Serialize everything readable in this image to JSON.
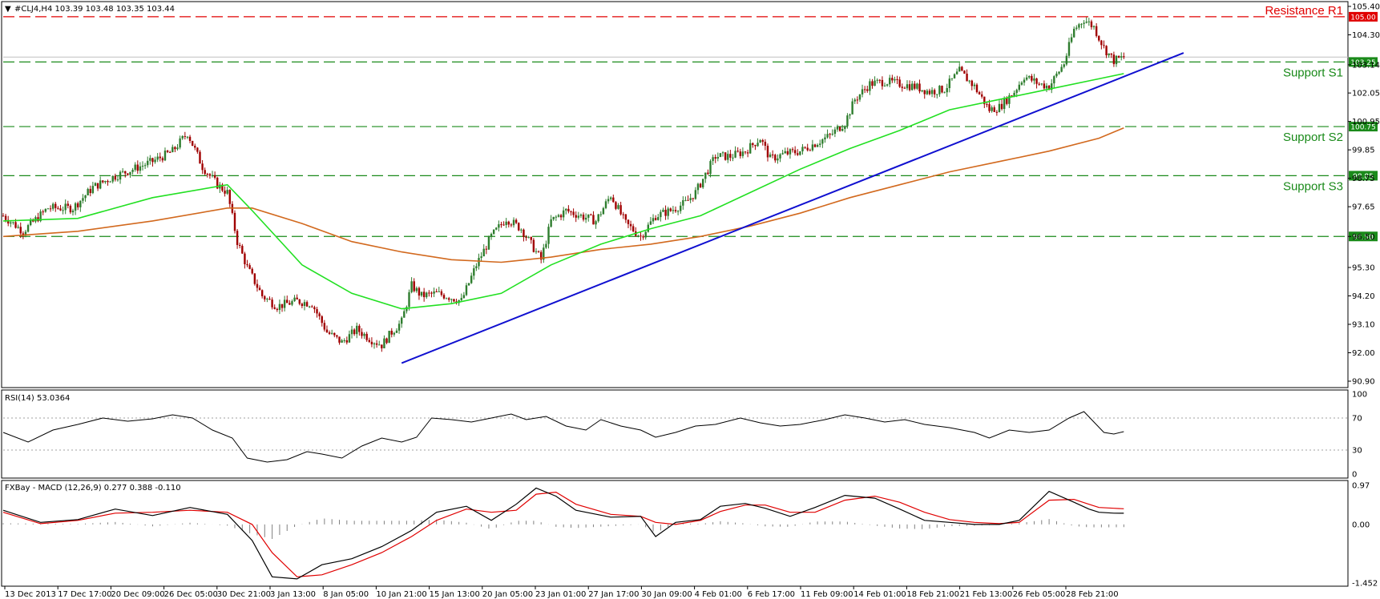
{
  "header": {
    "title": "#CLJ4,H4  103.39 103.48 103.35 103.44",
    "rsi_label": "RSI(14) 53.0364",
    "macd_label": "FXBay - MACD (12,26,9) 0.277 0.388 -0.110"
  },
  "colors": {
    "bull": "#2e7d2e",
    "bear": "#a00000",
    "ma_fast": "#22e022",
    "ma_slow": "#d2691e",
    "trendline": "#1010d0",
    "resistance": "#e00000",
    "support": "#1a8a1a",
    "macd_line": "#000000",
    "signal_line": "#e00000"
  },
  "chart_data": [
    {
      "type": "candlestick",
      "name": "price",
      "ylim": [
        90.9,
        105.4
      ],
      "y_ticks": [
        "105.40",
        "104.30",
        "103.14",
        "102.05",
        "100.95",
        "99.85",
        "98.75",
        "97.65",
        "96.50",
        "95.30",
        "94.20",
        "93.10",
        "92.00",
        "90.90"
      ],
      "x_ticks": [
        "13 Dec 2013",
        "17 Dec 17:00",
        "20 Dec 09:00",
        "26 Dec 05:00",
        "30 Dec 21:00",
        "3 Jan 13:00",
        "8 Jan 05:00",
        "10 Jan 21:00",
        "15 Jan 13:00",
        "20 Jan 05:00",
        "23 Jan 01:00",
        "27 Jan 17:00",
        "30 Jan 09:00",
        "4 Feb 01:00",
        "6 Feb 17:00",
        "11 Feb 09:00",
        "14 Feb 01:00",
        "18 Feb 21:00",
        "21 Feb 13:00",
        "26 Feb 05:00",
        "28 Feb 21:00"
      ],
      "close_path": [
        [
          0,
          97.3
        ],
        [
          8,
          96.7
        ],
        [
          18,
          97.6
        ],
        [
          28,
          97.6
        ],
        [
          36,
          98.4
        ],
        [
          44,
          98.8
        ],
        [
          52,
          99.1
        ],
        [
          60,
          99.4
        ],
        [
          68,
          99.8
        ],
        [
          74,
          100.5
        ],
        [
          80,
          99.2
        ],
        [
          86,
          98.5
        ],
        [
          90,
          98.2
        ],
        [
          94,
          96.3
        ],
        [
          98,
          95.3
        ],
        [
          104,
          94.2
        ],
        [
          110,
          93.8
        ],
        [
          118,
          94.0
        ],
        [
          124,
          93.9
        ],
        [
          130,
          92.8
        ],
        [
          136,
          92.4
        ],
        [
          142,
          92.9
        ],
        [
          148,
          92.5
        ],
        [
          152,
          92.3
        ],
        [
          156,
          92.8
        ],
        [
          160,
          93.2
        ],
        [
          164,
          94.6
        ],
        [
          168,
          94.2
        ],
        [
          174,
          94.3
        ],
        [
          178,
          94.2
        ],
        [
          184,
          94.0
        ],
        [
          190,
          95.4
        ],
        [
          196,
          96.5
        ],
        [
          202,
          97.2
        ],
        [
          208,
          96.8
        ],
        [
          212,
          96.2
        ],
        [
          216,
          95.6
        ],
        [
          220,
          97.1
        ],
        [
          226,
          97.5
        ],
        [
          232,
          97.3
        ],
        [
          238,
          97.1
        ],
        [
          244,
          98.1
        ],
        [
          250,
          97.0
        ],
        [
          256,
          96.5
        ],
        [
          262,
          97.3
        ],
        [
          268,
          97.5
        ],
        [
          274,
          97.8
        ],
        [
          278,
          98.2
        ],
        [
          282,
          98.9
        ],
        [
          286,
          99.6
        ],
        [
          292,
          99.6
        ],
        [
          298,
          99.8
        ],
        [
          304,
          100.3
        ],
        [
          308,
          99.5
        ],
        [
          314,
          99.7
        ],
        [
          320,
          99.8
        ],
        [
          326,
          100.1
        ],
        [
          332,
          100.4
        ],
        [
          338,
          100.9
        ],
        [
          342,
          101.8
        ],
        [
          348,
          102.4
        ],
        [
          354,
          102.5
        ],
        [
          360,
          102.4
        ],
        [
          366,
          102.3
        ],
        [
          372,
          102.1
        ],
        [
          378,
          102.2
        ],
        [
          384,
          102.9
        ],
        [
          390,
          102.3
        ],
        [
          396,
          101.4
        ],
        [
          400,
          101.5
        ],
        [
          406,
          102.1
        ],
        [
          410,
          102.7
        ],
        [
          416,
          102.4
        ],
        [
          420,
          102.3
        ],
        [
          426,
          103.2
        ],
        [
          430,
          104.5
        ],
        [
          434,
          104.9
        ],
        [
          438,
          104.6
        ],
        [
          442,
          103.8
        ],
        [
          446,
          103.3
        ],
        [
          450,
          103.44
        ]
      ],
      "ma_fast": [
        [
          0,
          97.1
        ],
        [
          30,
          97.2
        ],
        [
          60,
          98.0
        ],
        [
          90,
          98.5
        ],
        [
          100,
          97.5
        ],
        [
          120,
          95.4
        ],
        [
          140,
          94.3
        ],
        [
          160,
          93.7
        ],
        [
          180,
          93.9
        ],
        [
          200,
          94.3
        ],
        [
          220,
          95.4
        ],
        [
          240,
          96.2
        ],
        [
          260,
          96.8
        ],
        [
          280,
          97.3
        ],
        [
          300,
          98.2
        ],
        [
          320,
          99.1
        ],
        [
          340,
          99.9
        ],
        [
          360,
          100.6
        ],
        [
          380,
          101.4
        ],
        [
          400,
          101.8
        ],
        [
          420,
          102.2
        ],
        [
          440,
          102.6
        ],
        [
          450,
          102.8
        ]
      ],
      "ma_slow": [
        [
          0,
          96.5
        ],
        [
          30,
          96.7
        ],
        [
          60,
          97.1
        ],
        [
          90,
          97.6
        ],
        [
          100,
          97.6
        ],
        [
          120,
          97.0
        ],
        [
          140,
          96.3
        ],
        [
          160,
          95.9
        ],
        [
          180,
          95.6
        ],
        [
          200,
          95.5
        ],
        [
          220,
          95.7
        ],
        [
          240,
          96.0
        ],
        [
          260,
          96.2
        ],
        [
          280,
          96.5
        ],
        [
          300,
          96.9
        ],
        [
          320,
          97.4
        ],
        [
          340,
          98.0
        ],
        [
          360,
          98.5
        ],
        [
          380,
          99.0
        ],
        [
          400,
          99.4
        ],
        [
          420,
          99.8
        ],
        [
          440,
          100.3
        ],
        [
          450,
          100.7
        ]
      ],
      "trendline": [
        [
          160,
          91.6
        ],
        [
          474,
          103.6
        ]
      ],
      "levels": [
        {
          "name": "Resistance R1",
          "value": 105.0,
          "tag": "105.00",
          "kind": "resistance"
        },
        {
          "name": "Support S1",
          "value": 103.25,
          "tag": "103.25",
          "kind": "support"
        },
        {
          "name": "Support S2",
          "value": 100.75,
          "tag": "100.75",
          "kind": "support"
        },
        {
          "name": "Support S3",
          "value": 98.85,
          "tag": "98.85",
          "kind": "support"
        },
        {
          "name": "",
          "value": 96.5,
          "tag": "96.50",
          "kind": "support"
        }
      ],
      "current_tag": "103.44"
    },
    {
      "type": "line",
      "name": "RSI(14)",
      "ylim": [
        0,
        100
      ],
      "y_ticks": [
        "100",
        "70",
        "30",
        "0"
      ],
      "levels": [
        70,
        30
      ],
      "values": [
        [
          0,
          52
        ],
        [
          10,
          40
        ],
        [
          20,
          55
        ],
        [
          30,
          62
        ],
        [
          40,
          70
        ],
        [
          50,
          66
        ],
        [
          60,
          69
        ],
        [
          68,
          74
        ],
        [
          76,
          70
        ],
        [
          84,
          55
        ],
        [
          92,
          45
        ],
        [
          98,
          20
        ],
        [
          106,
          15
        ],
        [
          114,
          18
        ],
        [
          122,
          28
        ],
        [
          128,
          25
        ],
        [
          136,
          20
        ],
        [
          144,
          35
        ],
        [
          152,
          45
        ],
        [
          160,
          40
        ],
        [
          166,
          46
        ],
        [
          172,
          70
        ],
        [
          180,
          68
        ],
        [
          188,
          65
        ],
        [
          196,
          70
        ],
        [
          204,
          75
        ],
        [
          210,
          68
        ],
        [
          218,
          72
        ],
        [
          226,
          60
        ],
        [
          234,
          55
        ],
        [
          240,
          68
        ],
        [
          248,
          60
        ],
        [
          256,
          55
        ],
        [
          262,
          46
        ],
        [
          270,
          52
        ],
        [
          278,
          60
        ],
        [
          286,
          62
        ],
        [
          296,
          70
        ],
        [
          304,
          64
        ],
        [
          312,
          60
        ],
        [
          320,
          62
        ],
        [
          330,
          68
        ],
        [
          338,
          74
        ],
        [
          346,
          70
        ],
        [
          354,
          65
        ],
        [
          362,
          68
        ],
        [
          370,
          62
        ],
        [
          380,
          58
        ],
        [
          390,
          52
        ],
        [
          396,
          45
        ],
        [
          404,
          55
        ],
        [
          412,
          52
        ],
        [
          420,
          55
        ],
        [
          428,
          70
        ],
        [
          434,
          78
        ],
        [
          438,
          65
        ],
        [
          442,
          52
        ],
        [
          446,
          50
        ],
        [
          450,
          53
        ]
      ]
    },
    {
      "type": "line",
      "name": "FXBay - MACD (12,26,9)",
      "ylim": [
        -1.452,
        0.97
      ],
      "y_ticks": [
        "0.97",
        "0.00",
        "-1.452"
      ],
      "macd": [
        [
          0,
          0.35
        ],
        [
          15,
          0.05
        ],
        [
          30,
          0.12
        ],
        [
          45,
          0.38
        ],
        [
          60,
          0.22
        ],
        [
          75,
          0.42
        ],
        [
          90,
          0.25
        ],
        [
          100,
          -0.4
        ],
        [
          108,
          -1.3
        ],
        [
          118,
          -1.35
        ],
        [
          128,
          -1.0
        ],
        [
          140,
          -0.85
        ],
        [
          152,
          -0.55
        ],
        [
          164,
          -0.15
        ],
        [
          174,
          0.3
        ],
        [
          186,
          0.45
        ],
        [
          196,
          0.1
        ],
        [
          206,
          0.5
        ],
        [
          214,
          0.9
        ],
        [
          222,
          0.7
        ],
        [
          230,
          0.35
        ],
        [
          244,
          0.18
        ],
        [
          256,
          0.2
        ],
        [
          262,
          -0.3
        ],
        [
          270,
          0.05
        ],
        [
          280,
          0.12
        ],
        [
          288,
          0.45
        ],
        [
          298,
          0.52
        ],
        [
          306,
          0.4
        ],
        [
          316,
          0.2
        ],
        [
          326,
          0.42
        ],
        [
          338,
          0.72
        ],
        [
          350,
          0.65
        ],
        [
          360,
          0.38
        ],
        [
          370,
          0.1
        ],
        [
          380,
          0.05
        ],
        [
          390,
          0.0
        ],
        [
          400,
          0.0
        ],
        [
          408,
          0.1
        ],
        [
          420,
          0.82
        ],
        [
          430,
          0.55
        ],
        [
          436,
          0.38
        ],
        [
          440,
          0.3
        ],
        [
          446,
          0.28
        ],
        [
          450,
          0.277
        ]
      ],
      "signal": [
        [
          0,
          0.3
        ],
        [
          15,
          0.02
        ],
        [
          30,
          0.1
        ],
        [
          45,
          0.28
        ],
        [
          60,
          0.3
        ],
        [
          75,
          0.35
        ],
        [
          90,
          0.3
        ],
        [
          100,
          0.0
        ],
        [
          108,
          -0.7
        ],
        [
          118,
          -1.3
        ],
        [
          128,
          -1.25
        ],
        [
          140,
          -1.0
        ],
        [
          152,
          -0.7
        ],
        [
          164,
          -0.3
        ],
        [
          174,
          0.1
        ],
        [
          186,
          0.38
        ],
        [
          196,
          0.3
        ],
        [
          206,
          0.35
        ],
        [
          214,
          0.75
        ],
        [
          222,
          0.8
        ],
        [
          230,
          0.5
        ],
        [
          244,
          0.25
        ],
        [
          256,
          0.2
        ],
        [
          262,
          0.05
        ],
        [
          270,
          0.0
        ],
        [
          280,
          0.1
        ],
        [
          288,
          0.32
        ],
        [
          298,
          0.48
        ],
        [
          306,
          0.48
        ],
        [
          316,
          0.3
        ],
        [
          326,
          0.3
        ],
        [
          338,
          0.6
        ],
        [
          350,
          0.7
        ],
        [
          360,
          0.55
        ],
        [
          370,
          0.3
        ],
        [
          380,
          0.12
        ],
        [
          390,
          0.05
        ],
        [
          400,
          0.02
        ],
        [
          408,
          0.05
        ],
        [
          420,
          0.6
        ],
        [
          430,
          0.62
        ],
        [
          436,
          0.5
        ],
        [
          440,
          0.42
        ],
        [
          446,
          0.4
        ],
        [
          450,
          0.388
        ]
      ]
    }
  ]
}
